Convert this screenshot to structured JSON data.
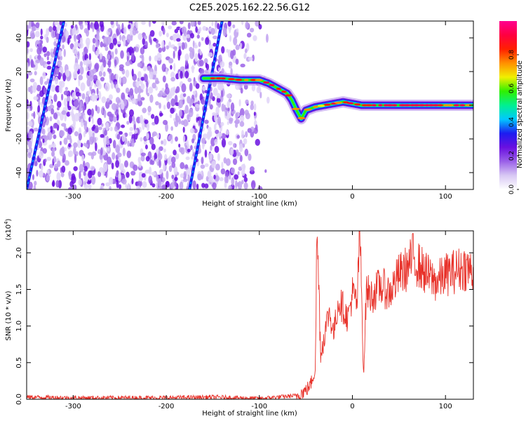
{
  "title": "C2E5.2025.162.22.56.G12",
  "chart_data": [
    {
      "type": "heatmap",
      "xlabel": "Height of straight line (km)",
      "ylabel": "Frequency (Hz)",
      "xlim": [
        -350,
        130
      ],
      "ylim": [
        -50,
        50
      ],
      "xticks": [
        -300,
        -200,
        -100,
        0,
        100
      ],
      "yticks": [
        -40,
        -20,
        0,
        20,
        40
      ],
      "colorbar": {
        "label": "Normalized spectral amplitude",
        "range": [
          0,
          1
        ],
        "ticks": [
          "0.0",
          "0.2",
          "0.4",
          "0.6",
          "0.8"
        ],
        "colors": [
          "#ffffff",
          "#d8c8f4",
          "#9a60e8",
          "#6a10e0",
          "#1c1cf0",
          "#00c8ff",
          "#00f090",
          "#30f000",
          "#f0f000",
          "#ff9000",
          "#ff2000",
          "#ff0040",
          "#ff0090"
        ]
      },
      "ridge": {
        "x": [
          -160,
          -150,
          -140,
          -120,
          -100,
          -90,
          -80,
          -70,
          -65,
          -60,
          -55,
          -50,
          -45,
          -40,
          -30,
          -20,
          -10,
          0,
          10,
          20,
          40,
          60,
          80,
          100,
          130
        ],
        "y": [
          16,
          16,
          16,
          15,
          15,
          13,
          10,
          7,
          3,
          -3,
          -8,
          -3,
          -2,
          -1,
          0,
          1,
          2,
          1,
          0,
          0,
          0,
          0,
          0,
          0,
          0
        ]
      },
      "streaks": [
        {
          "x": [
            -350,
            -310
          ],
          "y": [
            -50,
            50
          ]
        },
        {
          "x": [
            -175,
            -140
          ],
          "y": [
            -50,
            50
          ]
        }
      ]
    },
    {
      "type": "line",
      "xlabel": "Height of straight line (km)",
      "ylabel": "SNR (10 * v/v)",
      "yscale_label": "(x10",
      "yscale_exp": "4",
      "yscale_close": ")",
      "xlim": [
        -350,
        130
      ],
      "ylim": [
        0,
        2.3
      ],
      "xticks": [
        -300,
        -200,
        -100,
        0,
        100
      ],
      "yticks": [
        "0.0",
        "0.5",
        "1.0",
        "1.5",
        "2.0"
      ],
      "color": "#e8322a",
      "series": [
        {
          "x": [
            -350,
            -300,
            -250,
            -200,
            -150,
            -100,
            -60,
            -50,
            -45,
            -40,
            -38,
            -36,
            -34,
            -30,
            -25,
            -20,
            -15,
            -10,
            -5,
            0,
            5,
            8,
            10,
            12,
            15,
            20,
            30,
            40,
            50,
            60,
            65,
            70,
            80,
            90,
            100,
            110,
            120,
            130
          ],
          "y": [
            0.03,
            0.02,
            0.02,
            0.02,
            0.03,
            0.01,
            0.05,
            0.12,
            0.2,
            0.4,
            2.3,
            1.5,
            0.6,
            0.9,
            1.2,
            0.9,
            1.35,
            1.25,
            1.1,
            1.45,
            1.3,
            2.3,
            1.4,
            0.3,
            1.5,
            1.4,
            1.55,
            1.45,
            1.7,
            1.8,
            1.95,
            1.85,
            1.7,
            1.6,
            1.7,
            1.75,
            1.8,
            1.75
          ]
        }
      ]
    }
  ]
}
